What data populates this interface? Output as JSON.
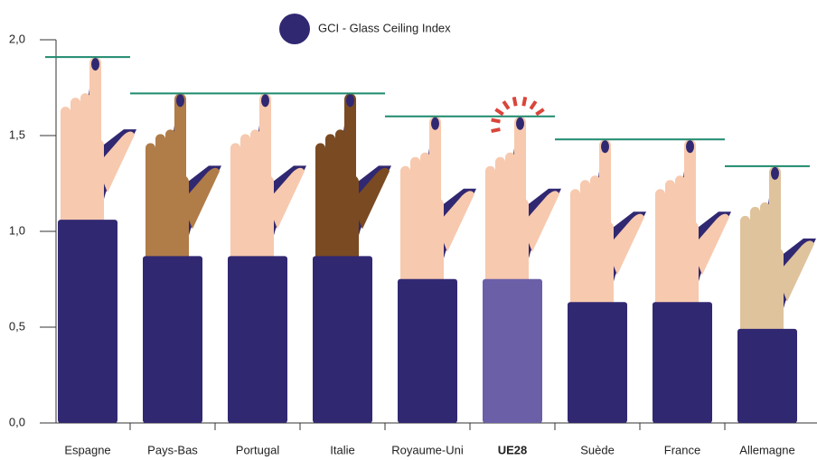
{
  "chart_data": {
    "type": "bar",
    "legend_label": "GCI - Glass Ceiling Index",
    "categories": [
      "Espagne",
      "Pays-Bas",
      "Portugal",
      "Italie",
      "Royaume-Uni",
      "UE28",
      "Suède",
      "France",
      "Allemagne"
    ],
    "values": [
      1.91,
      1.72,
      1.72,
      1.72,
      1.6,
      1.6,
      1.48,
      1.48,
      1.34
    ],
    "color": "#312872",
    "highlight_index": 5,
    "highlight_color": "#6b5fa8",
    "line_color": "#1f8a6e",
    "hand_colors": [
      "#f7c9ae",
      "#b07c48",
      "#f7c9ae",
      "#7a4a22",
      "#f7c9ae",
      "#f7c9ae",
      "#f7c9ae",
      "#f7c9ae",
      "#dfc39c"
    ],
    "ylim": [
      0,
      2
    ],
    "yticks": [
      {
        "value": 0,
        "label": "0,0"
      },
      {
        "value": 0.5,
        "label": "0,5"
      },
      {
        "value": 1,
        "label": "1,0"
      },
      {
        "value": 1.5,
        "label": "1,5"
      },
      {
        "value": 2,
        "label": "2,0"
      }
    ]
  }
}
